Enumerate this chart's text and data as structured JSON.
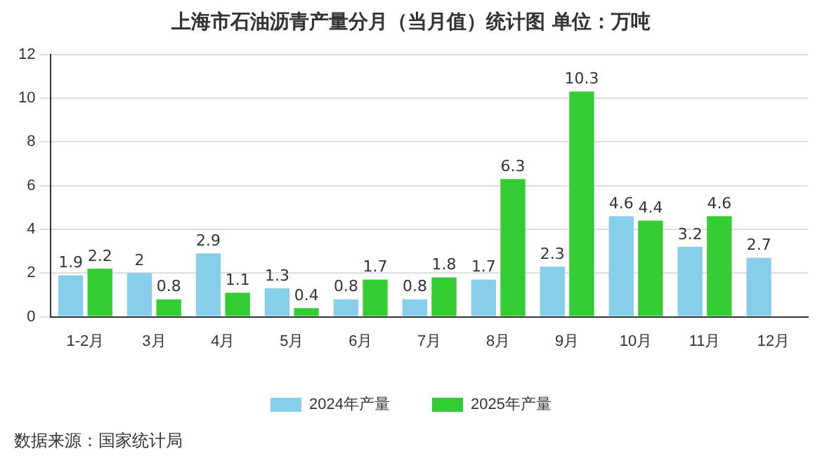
{
  "chart_data": {
    "type": "bar",
    "title": "上海市石油沥青产量分月（当月值）统计图 单位：万吨",
    "categories": [
      "1-2月",
      "3月",
      "4月",
      "5月",
      "6月",
      "7月",
      "8月",
      "9月",
      "10月",
      "11月",
      "12月"
    ],
    "series": [
      {
        "name": "2024年产量",
        "color": "#87ceeb",
        "values": [
          1.9,
          2,
          2.9,
          1.3,
          0.8,
          0.8,
          1.7,
          2.3,
          4.6,
          3.2,
          2.7
        ]
      },
      {
        "name": "2025年产量",
        "color": "#33cc33",
        "values": [
          2.2,
          0.8,
          1.1,
          0.4,
          1.7,
          1.8,
          6.3,
          10.3,
          4.4,
          4.6,
          null
        ]
      }
    ],
    "ylim": [
      0,
      12
    ],
    "yticks": [
      0,
      2,
      4,
      6,
      8,
      10,
      12
    ],
    "grid": "y",
    "legend": "bottom",
    "data_labels": true,
    "annotations": [
      "数据来源：国家统计局"
    ]
  }
}
